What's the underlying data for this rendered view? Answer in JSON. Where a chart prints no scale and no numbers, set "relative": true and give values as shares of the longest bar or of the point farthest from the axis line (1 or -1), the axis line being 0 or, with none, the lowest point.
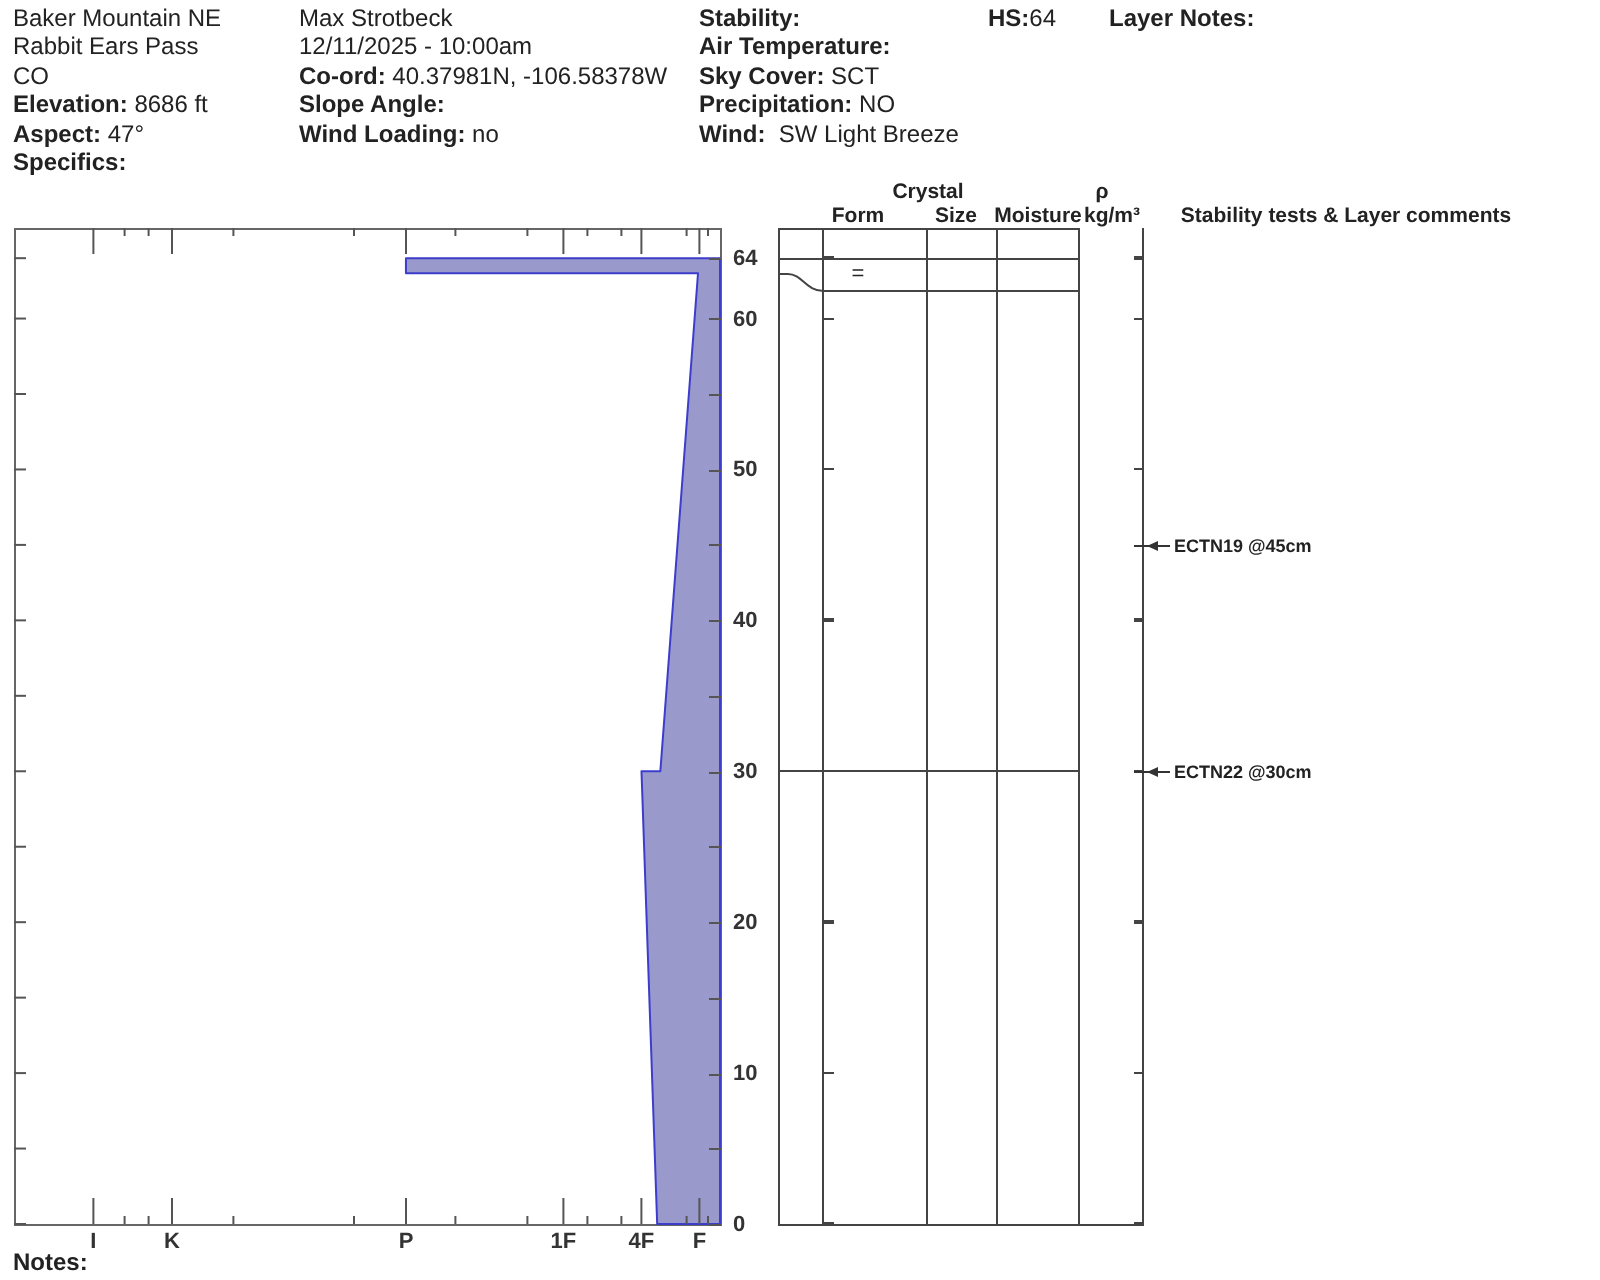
{
  "chart_data": {
    "type": "area",
    "orientation": "horizontal",
    "relative": true,
    "x": [
      0,
      30,
      30,
      63,
      63,
      64
    ],
    "values": [
      -0.2,
      -0.25,
      -0.19,
      -0.07,
      -1,
      -1
    ],
    "color": "#9999cc",
    "ylim": [
      0,
      66
    ],
    "yticks": [
      0,
      {
        "value": 5,
        "label": null
      },
      10,
      {
        "value": 15,
        "label": null
      },
      20,
      {
        "value": 25,
        "label": null
      },
      30,
      {
        "value": 35,
        "label": null
      },
      40,
      {
        "value": 45,
        "label": null
      },
      50,
      {
        "value": 55,
        "label": null
      },
      60,
      64
    ],
    "annotations": [
      "Baker Mountain NE",
      "Rabbit Ears Pass",
      "CO",
      "Elevation: 8686 ft",
      "Aspect: 47°",
      "Specifics:",
      "Max Strotbeck",
      "12/11/2025 - 10:00am",
      "Co-ord: 40.37981N, -106.58378W",
      "Slope Angle:",
      "Wind Loading: no",
      "Stability:",
      "Air Temperature:",
      "Sky Cover: SCT",
      "Precipitation: NO",
      "Wind:  SW Light Breeze",
      "HS:64",
      "Layer Notes:",
      "Crystal",
      "Form",
      "Size",
      "Moisture",
      "ρ",
      "kg/m³",
      "Stability tests & Layer comments",
      "=",
      "ECTN19 @45cm",
      "ECTN22 @30cm",
      "I",
      "K",
      "P",
      "1F",
      "4F",
      "F",
      "Notes:"
    ]
  }
}
